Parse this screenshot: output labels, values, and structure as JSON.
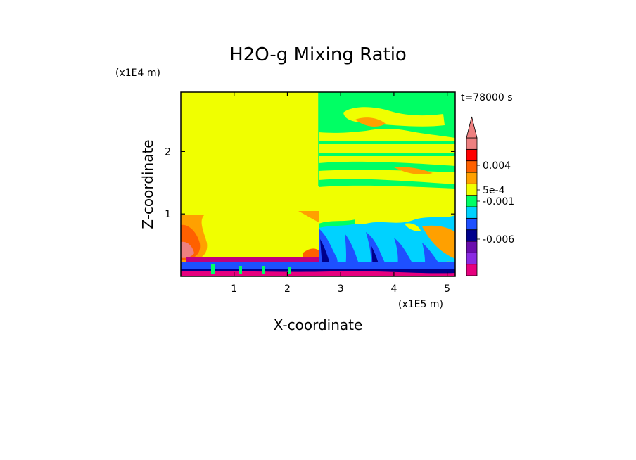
{
  "chart_data": {
    "type": "heatmap",
    "title": "H2O-g Mixing Ratio",
    "time_label": "t=78000 s",
    "xlabel": "X-coordinate",
    "ylabel": "Z-coordinate",
    "x_scale_label": "(x1E5 m)",
    "y_scale_label": "(x1E4 m)",
    "x_ticks": [
      "1",
      "2",
      "3",
      "4",
      "5"
    ],
    "y_ticks": [
      "1",
      "2"
    ],
    "xlim": [
      0,
      5.15
    ],
    "ylim": [
      0,
      2.95
    ],
    "colorbar": {
      "labels": [
        "0.004",
        "5e-4",
        "-0.001",
        "-0.006"
      ],
      "colors": [
        "#e6007e",
        "#8a2be2",
        "#6a0dad",
        "#00008b",
        "#1e50ff",
        "#00d2ff",
        "#00ff64",
        "#f0ff00",
        "#ffa000",
        "#ff6000",
        "#ff0000",
        "#ee8080"
      ]
    }
  }
}
